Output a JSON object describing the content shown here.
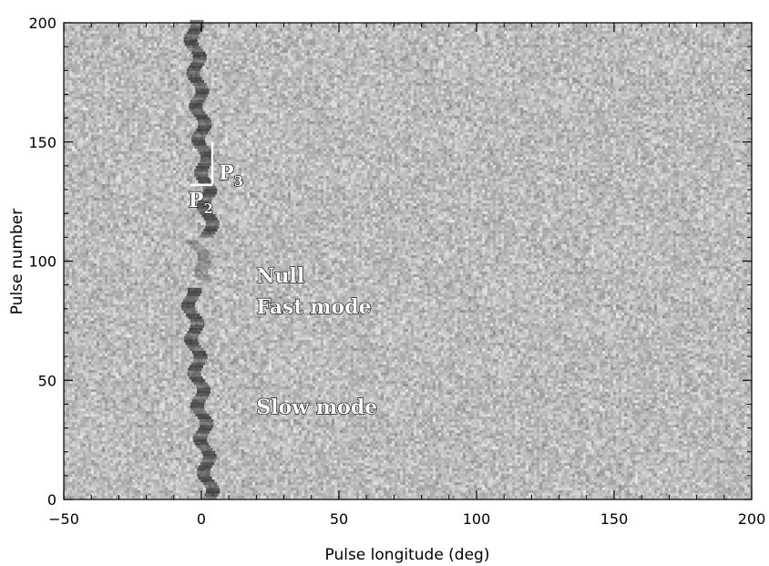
{
  "chart_data": {
    "type": "heatmap",
    "title": "",
    "xlabel": "Pulse longitude (deg)",
    "ylabel": "Pulse number",
    "xlim": [
      -50,
      200
    ],
    "ylim": [
      0,
      200
    ],
    "x_ticks": [
      -50,
      0,
      50,
      100,
      150,
      200
    ],
    "y_ticks": [
      0,
      50,
      100,
      150,
      200
    ],
    "x_tick_labels": [
      "−50",
      "0",
      "50",
      "100",
      "150",
      "200"
    ],
    "y_tick_labels": [
      "0",
      "50",
      "100",
      "150",
      "200"
    ],
    "colormap": "grayscale",
    "background_color": "#bdbdbd",
    "annotations": [
      {
        "text": "Null",
        "x": 20,
        "y": 91
      },
      {
        "text": "Fast mode",
        "x": 20,
        "y": 78
      },
      {
        "text": "Slow mode",
        "x": 20,
        "y": 36
      }
    ],
    "period_markers": {
      "p2": {
        "label_main": "P",
        "label_sub": "2",
        "x0": -4,
        "x1": 4,
        "y": 132
      },
      "p3": {
        "label_main": "P",
        "label_sub": "3",
        "x": 4,
        "y0": 132,
        "y1": 150
      }
    },
    "drift_bands": [
      {
        "y_start": 0,
        "y_end": 88,
        "x_start": 3,
        "x_end": -4,
        "mode": "slow"
      },
      {
        "y_start": 92,
        "y_end": 108,
        "x_start": 2,
        "x_end": -2,
        "mode": "weak"
      },
      {
        "y_start": 110,
        "y_end": 200,
        "x_start": 3,
        "x_end": -3,
        "mode": "slow"
      }
    ]
  }
}
